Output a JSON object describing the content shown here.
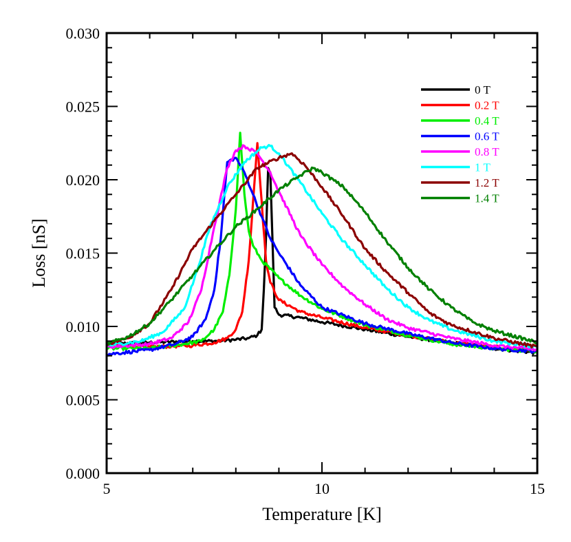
{
  "chart_data": {
    "type": "line",
    "xlabel": "Temperature [K]",
    "ylabel": "Loss [nS]",
    "xlim": [
      5,
      15
    ],
    "ylim": [
      0.0,
      0.03
    ],
    "x_ticks": [
      {
        "value": 5,
        "label": "5"
      },
      {
        "value": 10,
        "label": "10"
      },
      {
        "value": 15,
        "label": "15"
      }
    ],
    "x_minor_step": 1,
    "y_ticks": [
      {
        "value": 0.0,
        "label": "0.000"
      },
      {
        "value": 0.005,
        "label": "0.005"
      },
      {
        "value": 0.01,
        "label": "0.010"
      },
      {
        "value": 0.015,
        "label": "0.015"
      },
      {
        "value": 0.02,
        "label": "0.020"
      },
      {
        "value": 0.025,
        "label": "0.025"
      },
      {
        "value": 0.03,
        "label": "0.030"
      }
    ],
    "y_minor_step": 0.001,
    "grid": false,
    "legend_position": "top-right",
    "series": [
      {
        "name": "0 T",
        "color": "#000000",
        "x": [
          5.0,
          6.0,
          7.0,
          7.5,
          8.0,
          8.3,
          8.5,
          8.6,
          8.65,
          8.7,
          8.75,
          8.8,
          8.85,
          8.9,
          9.0,
          9.5,
          10.0,
          11.0,
          12.0,
          13.0,
          14.0,
          15.0
        ],
        "y": [
          0.0088,
          0.0089,
          0.009,
          0.009,
          0.0091,
          0.0092,
          0.0094,
          0.0098,
          0.0125,
          0.016,
          0.0208,
          0.0205,
          0.016,
          0.0113,
          0.0108,
          0.0106,
          0.0103,
          0.0098,
          0.0093,
          0.0089,
          0.0085,
          0.0082
        ]
      },
      {
        "name": "0.2 T",
        "color": "#ff0000",
        "x": [
          5.0,
          6.0,
          7.0,
          7.5,
          7.8,
          8.0,
          8.15,
          8.3,
          8.4,
          8.5,
          8.6,
          8.7,
          8.8,
          9.0,
          9.5,
          10.0,
          11.0,
          12.0,
          13.0,
          14.0,
          15.0
        ],
        "y": [
          0.0087,
          0.0086,
          0.0087,
          0.0089,
          0.0092,
          0.0098,
          0.011,
          0.0145,
          0.0185,
          0.0225,
          0.0185,
          0.0145,
          0.013,
          0.0118,
          0.011,
          0.0106,
          0.0099,
          0.0094,
          0.0089,
          0.0086,
          0.0084
        ]
      },
      {
        "name": "0.4 T",
        "color": "#00ee00",
        "x": [
          5.0,
          6.0,
          6.8,
          7.2,
          7.5,
          7.7,
          7.85,
          8.0,
          8.1,
          8.2,
          8.3,
          8.4,
          8.6,
          9.0,
          9.5,
          10.0,
          11.0,
          12.0,
          13.0,
          14.0,
          15.0
        ],
        "y": [
          0.0085,
          0.0085,
          0.0088,
          0.009,
          0.0098,
          0.011,
          0.0135,
          0.018,
          0.0232,
          0.019,
          0.0165,
          0.0155,
          0.0145,
          0.0133,
          0.0121,
          0.0112,
          0.0101,
          0.0094,
          0.0088,
          0.0085,
          0.0083
        ]
      },
      {
        "name": "0.6 T",
        "color": "#0000ff",
        "x": [
          5.0,
          6.0,
          6.6,
          7.0,
          7.3,
          7.5,
          7.65,
          7.8,
          8.0,
          8.2,
          8.4,
          8.6,
          8.8,
          9.0,
          9.5,
          10.0,
          11.0,
          12.0,
          13.0,
          14.0,
          15.0
        ],
        "y": [
          0.0081,
          0.0084,
          0.0088,
          0.0093,
          0.0105,
          0.0125,
          0.016,
          0.0212,
          0.0215,
          0.0205,
          0.019,
          0.0175,
          0.016,
          0.015,
          0.0128,
          0.0113,
          0.0102,
          0.0095,
          0.0089,
          0.0085,
          0.0083
        ]
      },
      {
        "name": "0.8 T",
        "color": "#ff00ff",
        "x": [
          5.0,
          6.0,
          6.5,
          6.9,
          7.2,
          7.5,
          7.8,
          8.0,
          8.2,
          8.5,
          8.8,
          9.0,
          9.5,
          10.0,
          10.5,
          11.0,
          11.5,
          12.0,
          13.0,
          14.0,
          15.0
        ],
        "y": [
          0.0086,
          0.0088,
          0.0092,
          0.0103,
          0.0125,
          0.0168,
          0.0208,
          0.022,
          0.0223,
          0.0218,
          0.0205,
          0.0192,
          0.0162,
          0.0142,
          0.0127,
          0.0115,
          0.0105,
          0.0099,
          0.0092,
          0.0087,
          0.0084
        ]
      },
      {
        "name": "1 T",
        "color": "#00ffff",
        "x": [
          5.0,
          5.8,
          6.3,
          6.8,
          7.1,
          7.4,
          7.8,
          8.2,
          8.6,
          8.8,
          9.0,
          9.5,
          10.0,
          10.5,
          11.0,
          11.5,
          12.0,
          12.5,
          13.0,
          14.0,
          15.0
        ],
        "y": [
          0.0087,
          0.009,
          0.0096,
          0.0112,
          0.0138,
          0.0168,
          0.0195,
          0.0212,
          0.0222,
          0.0223,
          0.0218,
          0.0198,
          0.0177,
          0.0158,
          0.0142,
          0.0126,
          0.0113,
          0.0104,
          0.0098,
          0.009,
          0.0086
        ]
      },
      {
        "name": "1.2 T",
        "color": "#8b0000",
        "x": [
          5.0,
          5.5,
          6.0,
          6.5,
          7.0,
          7.5,
          8.0,
          8.5,
          9.0,
          9.3,
          9.6,
          10.0,
          10.5,
          11.0,
          11.5,
          12.0,
          12.5,
          13.0,
          14.0,
          15.0
        ],
        "y": [
          0.0088,
          0.0092,
          0.0102,
          0.0125,
          0.0153,
          0.0172,
          0.019,
          0.0208,
          0.0215,
          0.0218,
          0.021,
          0.0195,
          0.0175,
          0.0153,
          0.0137,
          0.0123,
          0.0109,
          0.0101,
          0.0092,
          0.0086
        ]
      },
      {
        "name": "1.4 T",
        "color": "#008000",
        "x": [
          5.0,
          5.5,
          6.0,
          6.5,
          7.0,
          7.5,
          8.0,
          8.5,
          9.0,
          9.5,
          9.8,
          10.0,
          10.5,
          11.0,
          11.5,
          12.0,
          12.5,
          13.0,
          13.5,
          14.0,
          15.0
        ],
        "y": [
          0.0088,
          0.0093,
          0.0102,
          0.0118,
          0.0135,
          0.0152,
          0.0168,
          0.018,
          0.0193,
          0.0203,
          0.0208,
          0.0205,
          0.0195,
          0.0178,
          0.0158,
          0.014,
          0.0125,
          0.0113,
          0.0103,
          0.0097,
          0.0089
        ]
      }
    ]
  }
}
